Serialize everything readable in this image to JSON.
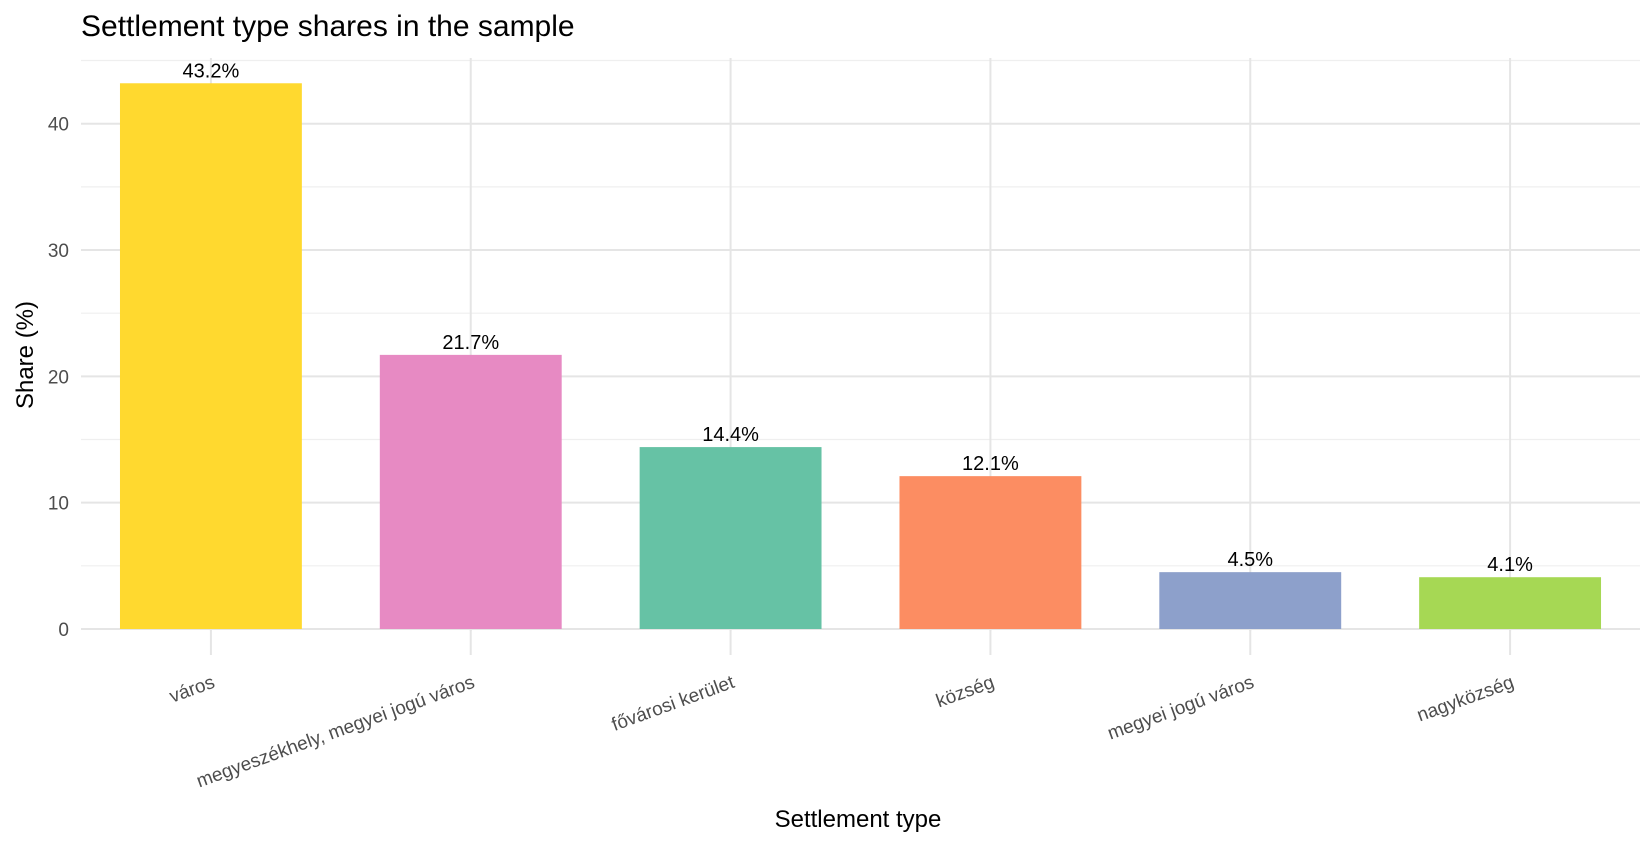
{
  "chart_data": {
    "type": "bar",
    "title": "Settlement type shares in the sample",
    "xlabel": "Settlement type",
    "ylabel": "Share (%)",
    "categories": [
      "város",
      "megyeszékhely, megyei jogú város",
      "fővárosi kerület",
      "község",
      "megyei jogú város",
      "nagyközség"
    ],
    "values": [
      43.2,
      21.7,
      14.4,
      12.1,
      4.5,
      4.1
    ],
    "value_labels": [
      "43.2%",
      "21.7%",
      "14.4%",
      "12.1%",
      "4.5%",
      "4.1%"
    ],
    "colors": [
      "#FFD92F",
      "#E78AC3",
      "#66C2A5",
      "#FC8D62",
      "#8DA0CB",
      "#A6D854"
    ],
    "ylim": [
      0,
      45.2
    ],
    "yticks": [
      0,
      10,
      20,
      30,
      40
    ],
    "grid": true,
    "legend": "none"
  }
}
